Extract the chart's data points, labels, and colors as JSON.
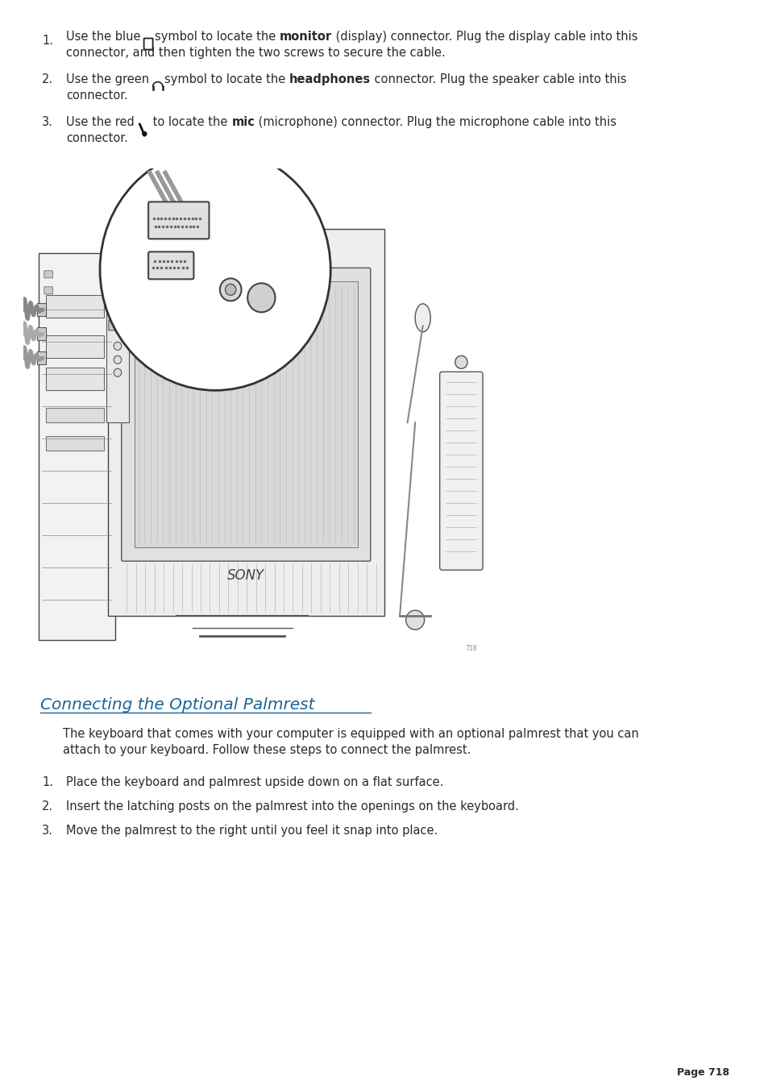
{
  "bg_color": "#ffffff",
  "text_color": "#2a2a2a",
  "heading_color": "#1a6496",
  "font_family": "DejaVu Sans",
  "body_fontsize": 10.5,
  "heading_fontsize": 14.5,
  "page_number_text": "Page 718",
  "item1_line1a": "Use the blue ",
  "item1_line1b": "symbol to locate the ",
  "item1_line1c": "monitor",
  "item1_line1d": " (display) connector. Plug the display cable into this",
  "item1_line2": "connector, and then tighten the two screws to secure the cable.",
  "item2_line1a": "Use the green ",
  "item2_line1b": "symbol to locate the ",
  "item2_line1c": "headphones",
  "item2_line1d": " connector. Plug the speaker cable into this",
  "item2_line2": "connector.",
  "item3_line1a": "Use the red ",
  "item3_line1b": " to locate the ",
  "item3_line1c": "mic",
  "item3_line1d": " (microphone) connector. Plug the microphone cable into this",
  "item3_line2": "connector.",
  "section_heading": "Connecting the Optional Palmrest",
  "intro_line1": "The keyboard that comes with your computer is equipped with an optional palmrest that you can",
  "intro_line2": "attach to your keyboard. Follow these steps to connect the palmrest.",
  "s_item1": "Place the keyboard and palmrest upside down on a flat surface.",
  "s_item2": "Insert the latching posts on the palmrest into the openings on the keyboard.",
  "s_item3": "Move the palmrest to the right until you feel it snap into place."
}
